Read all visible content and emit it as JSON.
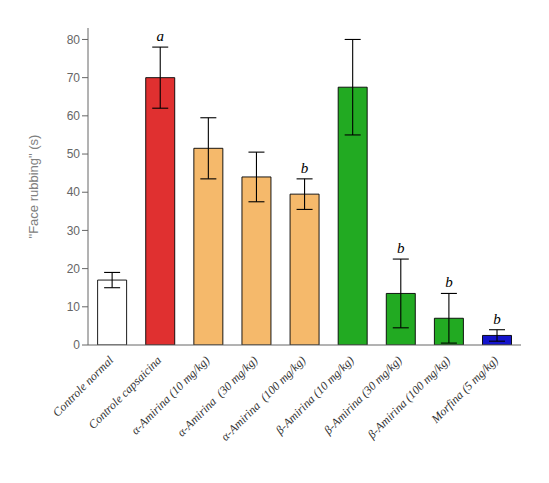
{
  "chart_data": {
    "type": "bar",
    "categories": [
      "Controle normal",
      "Controle capsaicina",
      "α-Amirina (10 mg/kg)",
      "α-Amirina  (30 mg/kg)",
      "α-Amirina  (100 mg/kg)",
      "β-Amirina (10 mg/kg)",
      "β-Amirina (30 mg/kg)",
      "β-Amirina (100 mg/kg)",
      "Morfina (5 mg/kg)"
    ],
    "values": [
      17,
      70,
      51.5,
      44,
      39.5,
      67.5,
      13.5,
      7,
      2.5
    ],
    "errors": [
      2,
      8,
      8,
      6.5,
      4,
      12.5,
      9,
      6.5,
      1.5
    ],
    "colors": [
      "#ffffff",
      "#e03030",
      "#f5b96b",
      "#f5b96b",
      "#f5b96b",
      "#22aa22",
      "#22aa22",
      "#22aa22",
      "#1414cc"
    ],
    "ylabel": "\"Face rubbing\" (s)",
    "ylim": [
      0,
      83
    ],
    "yticks": [
      0,
      10,
      20,
      30,
      40,
      50,
      60,
      70,
      80
    ],
    "annotations": [
      null,
      "a",
      null,
      null,
      "b",
      null,
      "b",
      "b",
      "b"
    ],
    "grid": false
  }
}
